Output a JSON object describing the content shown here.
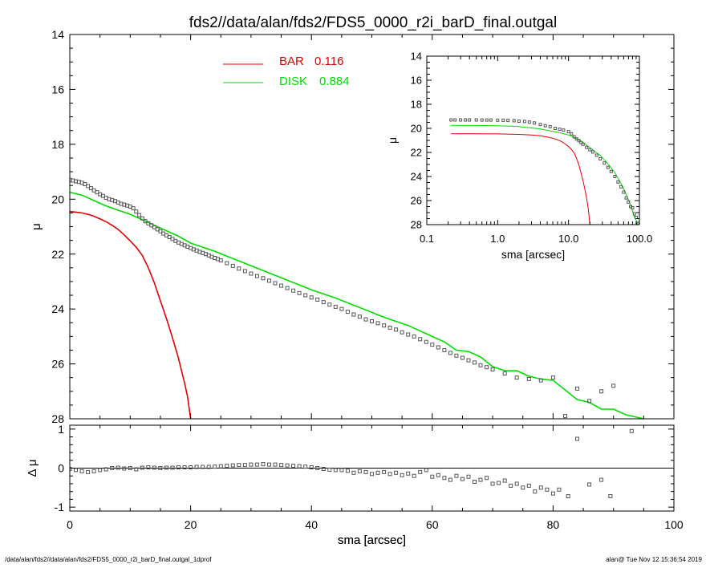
{
  "title": "fds2//data/alan/fds2/FDS5_0000_r2i_barD_final.outgal",
  "footer": {
    "left": "/data/alan/fds2//data/alan/fds2/FDS5_0000_r2i_barD_final.outgal_1dprof",
    "right": "alan@  Tue Nov 12 15:36:54 2019"
  },
  "colors": {
    "bar": "#e00000",
    "disk": "#00dd00",
    "data": "#555555",
    "axis": "#000000"
  },
  "chart_data": [
    {
      "id": "main",
      "type": "scatter",
      "xlabel": "sma [arcsec]",
      "ylabel": "μ",
      "xlim": [
        0,
        100
      ],
      "ylim": [
        28,
        14
      ],
      "y_inverted": true,
      "xticks": [
        0,
        20,
        40,
        60,
        80,
        100
      ],
      "yticks": [
        14,
        16,
        18,
        20,
        22,
        24,
        26,
        28
      ],
      "legend": {
        "placement": "top-center",
        "entries": [
          {
            "name": "BAR",
            "value": "0.116",
            "series": "bar"
          },
          {
            "name": "DISK",
            "value": "0.884",
            "series": "disk"
          }
        ]
      },
      "series": [
        {
          "name": "BAR",
          "kind": "line",
          "color_key": "bar",
          "x": [
            0,
            1,
            2,
            3,
            4,
            5,
            6,
            7,
            8,
            9,
            10,
            11,
            12,
            13,
            14,
            15,
            16,
            17,
            18,
            19,
            19.5,
            20
          ],
          "y": [
            20.45,
            20.47,
            20.5,
            20.55,
            20.62,
            20.72,
            20.82,
            20.95,
            21.1,
            21.3,
            21.52,
            21.75,
            22.05,
            22.5,
            23.05,
            23.7,
            24.35,
            25.05,
            25.8,
            26.7,
            27.2,
            28
          ]
        },
        {
          "name": "DISK",
          "kind": "line",
          "color_key": "disk",
          "x": [
            0,
            2,
            4,
            6,
            8,
            10,
            12,
            14,
            16,
            18,
            20,
            24,
            28,
            32,
            36,
            40,
            44,
            48,
            52,
            56,
            60,
            62,
            64,
            66,
            68,
            70,
            72,
            74,
            76,
            78,
            80,
            82,
            84,
            86,
            88,
            90,
            92,
            95
          ],
          "y": [
            19.75,
            19.85,
            20.05,
            20.25,
            20.4,
            20.55,
            20.75,
            20.95,
            21.15,
            21.35,
            21.6,
            21.9,
            22.25,
            22.6,
            22.95,
            23.3,
            23.6,
            23.95,
            24.3,
            24.6,
            25.0,
            25.2,
            25.5,
            25.55,
            25.75,
            26.1,
            26.25,
            26.25,
            26.45,
            26.55,
            26.6,
            26.95,
            27.3,
            27.4,
            27.65,
            27.65,
            27.85,
            28.0
          ]
        },
        {
          "name": "data",
          "kind": "markers",
          "color_key": "data",
          "x": [
            0,
            0.5,
            1,
            1.5,
            2,
            2.5,
            3,
            3.5,
            4,
            4.5,
            5,
            5.5,
            6,
            6.5,
            7,
            7.5,
            8,
            8.5,
            9,
            9.5,
            10,
            10.5,
            11,
            11.5,
            12,
            12.5,
            13,
            13.5,
            14,
            14.5,
            15,
            15.5,
            16,
            16.5,
            17,
            17.5,
            18,
            18.5,
            19,
            19.5,
            20,
            20.5,
            21,
            21.5,
            22,
            22.5,
            23,
            23.5,
            24,
            24.5,
            25,
            26,
            27,
            28,
            29,
            30,
            31,
            32,
            33,
            34,
            35,
            36,
            37,
            38,
            39,
            40,
            41,
            42,
            43,
            44,
            45,
            46,
            47,
            48,
            49,
            50,
            51,
            52,
            53,
            54,
            55,
            56,
            57,
            58,
            59,
            60,
            61,
            62,
            63,
            64,
            65,
            66,
            67,
            68,
            69,
            70,
            72,
            74,
            76,
            78,
            80,
            82,
            84,
            86,
            88,
            90
          ],
          "y": [
            19.3,
            19.32,
            19.35,
            19.37,
            19.4,
            19.45,
            19.52,
            19.6,
            19.68,
            19.75,
            19.82,
            19.88,
            19.95,
            20.0,
            20.03,
            20.07,
            20.12,
            20.17,
            20.2,
            20.23,
            20.27,
            20.33,
            20.45,
            20.58,
            20.7,
            20.8,
            20.88,
            20.95,
            21.02,
            21.1,
            21.17,
            21.25,
            21.32,
            21.38,
            21.45,
            21.52,
            21.58,
            21.63,
            21.68,
            21.73,
            21.78,
            21.83,
            21.87,
            21.92,
            21.96,
            22.0,
            22.05,
            22.1,
            22.14,
            22.18,
            22.23,
            22.33,
            22.43,
            22.53,
            22.62,
            22.71,
            22.8,
            22.88,
            22.97,
            23.06,
            23.15,
            23.24,
            23.33,
            23.42,
            23.5,
            23.58,
            23.66,
            23.75,
            23.84,
            23.92,
            24.0,
            24.1,
            24.2,
            24.28,
            24.38,
            24.45,
            24.52,
            24.6,
            24.68,
            24.75,
            24.85,
            24.93,
            25.0,
            25.1,
            25.2,
            25.3,
            25.4,
            25.5,
            25.6,
            25.7,
            25.78,
            25.87,
            25.95,
            26.05,
            26.12,
            26.2,
            26.35,
            26.5,
            26.55,
            26.6,
            26.5,
            27.9,
            26.9,
            27.35,
            27.0,
            26.8
          ]
        }
      ]
    },
    {
      "id": "residual",
      "type": "scatter",
      "xlabel": "sma [arcsec]",
      "ylabel": "Δ μ",
      "xlim": [
        0,
        100
      ],
      "ylim": [
        -1.1,
        1.1
      ],
      "xticks": [
        0,
        20,
        40,
        60,
        80,
        100
      ],
      "yticks": [
        -1,
        0,
        1
      ],
      "zero_line": true,
      "series": [
        {
          "name": "residual",
          "kind": "markers",
          "color_key": "data",
          "x": [
            0,
            1,
            2,
            3,
            4,
            5,
            6,
            7,
            8,
            9,
            10,
            11,
            12,
            13,
            14,
            15,
            16,
            17,
            18,
            19,
            20,
            21,
            22,
            23,
            24,
            25,
            26,
            27,
            28,
            29,
            30,
            31,
            32,
            33,
            34,
            35,
            36,
            37,
            38,
            39,
            40,
            41,
            42,
            43,
            44,
            45,
            46,
            47,
            48,
            49,
            50,
            51,
            52,
            53,
            54,
            55,
            56,
            57,
            58,
            59,
            60,
            61,
            62,
            63,
            64,
            65,
            66,
            67,
            68,
            69,
            70,
            71,
            72,
            73,
            74,
            75,
            76,
            77,
            78,
            79,
            80,
            81,
            82.5,
            84,
            86,
            88,
            89.5,
            93
          ],
          "y": [
            -0.02,
            -0.05,
            -0.08,
            -0.1,
            -0.08,
            -0.05,
            -0.03,
            0.0,
            0.01,
            -0.01,
            0.0,
            -0.03,
            0.01,
            0.02,
            0.01,
            0.0,
            0.01,
            0.01,
            0.02,
            0.02,
            0.02,
            0.03,
            0.03,
            0.03,
            0.04,
            0.05,
            0.06,
            0.07,
            0.08,
            0.08,
            0.09,
            0.09,
            0.1,
            0.09,
            0.09,
            0.08,
            0.07,
            0.06,
            0.05,
            0.04,
            0.02,
            0.0,
            -0.02,
            -0.04,
            -0.05,
            -0.05,
            -0.07,
            -0.12,
            -0.08,
            -0.1,
            -0.15,
            -0.12,
            -0.1,
            -0.15,
            -0.12,
            -0.18,
            -0.14,
            -0.2,
            -0.1,
            -0.05,
            -0.22,
            -0.18,
            -0.25,
            -0.3,
            -0.2,
            -0.28,
            -0.22,
            -0.35,
            -0.3,
            -0.25,
            -0.4,
            -0.38,
            -0.32,
            -0.45,
            -0.4,
            -0.5,
            -0.45,
            -0.6,
            -0.5,
            -0.55,
            -0.65,
            -0.55,
            -0.72,
            0.75,
            -0.42,
            -0.3,
            -0.72,
            0.95
          ]
        }
      ]
    },
    {
      "id": "inset",
      "type": "scatter",
      "xlabel": "sma [arcsec]",
      "ylabel": "μ",
      "xscale": "log",
      "xlim": [
        0.1,
        100
      ],
      "ylim": [
        28,
        14
      ],
      "y_inverted": true,
      "xticks": [
        0.1,
        1.0,
        10.0,
        100.0
      ],
      "xticklabels": [
        "0.1",
        "1.0",
        "10.0",
        "100.0"
      ],
      "yticks": [
        14,
        16,
        18,
        20,
        22,
        24,
        26,
        28
      ],
      "series": [
        {
          "name": "BAR",
          "kind": "line",
          "color_key": "bar",
          "x": [
            0.22,
            0.5,
            1,
            2,
            3,
            4,
            5,
            6,
            7,
            8,
            9,
            10,
            11,
            12,
            13,
            14,
            15,
            16,
            17,
            18,
            19,
            20
          ],
          "y": [
            20.45,
            20.45,
            20.46,
            20.5,
            20.55,
            20.62,
            20.72,
            20.82,
            20.95,
            21.1,
            21.3,
            21.52,
            21.75,
            22.05,
            22.5,
            23.05,
            23.7,
            24.35,
            25.05,
            25.8,
            26.7,
            28
          ]
        },
        {
          "name": "DISK",
          "kind": "line",
          "color_key": "disk",
          "x": [
            0.22,
            0.5,
            1,
            2,
            4,
            6,
            8,
            10,
            12,
            16,
            20,
            28,
            36,
            44,
            52,
            60,
            68,
            76,
            84,
            90,
            95
          ],
          "y": [
            19.75,
            19.76,
            19.78,
            19.85,
            20.05,
            20.25,
            20.4,
            20.55,
            20.75,
            21.15,
            21.6,
            22.25,
            22.95,
            23.6,
            24.3,
            25.0,
            25.75,
            26.45,
            27.3,
            27.65,
            28.0
          ]
        },
        {
          "name": "data",
          "kind": "markers",
          "color_key": "data",
          "x": [
            0.22,
            0.25,
            0.3,
            0.35,
            0.4,
            0.5,
            0.6,
            0.7,
            0.8,
            1.0,
            1.2,
            1.4,
            1.7,
            2.0,
            2.4,
            2.8,
            3.3,
            4.0,
            4.7,
            5.5,
            6.5,
            7.5,
            8.5,
            10,
            11,
            12,
            13,
            14,
            15,
            16,
            18,
            20,
            22,
            25,
            28,
            32,
            36,
            40,
            45,
            50,
            55,
            60,
            65,
            70,
            75,
            80,
            85,
            90,
            95
          ],
          "y": [
            19.3,
            19.3,
            19.3,
            19.3,
            19.3,
            19.3,
            19.31,
            19.31,
            19.31,
            19.32,
            19.33,
            19.34,
            19.36,
            19.4,
            19.43,
            19.48,
            19.55,
            19.68,
            19.78,
            19.86,
            20.0,
            20.07,
            20.15,
            20.27,
            20.45,
            20.7,
            20.88,
            21.02,
            21.17,
            21.32,
            21.58,
            21.78,
            21.96,
            22.23,
            22.53,
            22.88,
            23.24,
            23.58,
            24.0,
            24.45,
            24.85,
            25.3,
            25.78,
            26.12,
            26.5,
            26.6,
            27.1,
            27.4,
            27.9
          ]
        }
      ]
    }
  ]
}
